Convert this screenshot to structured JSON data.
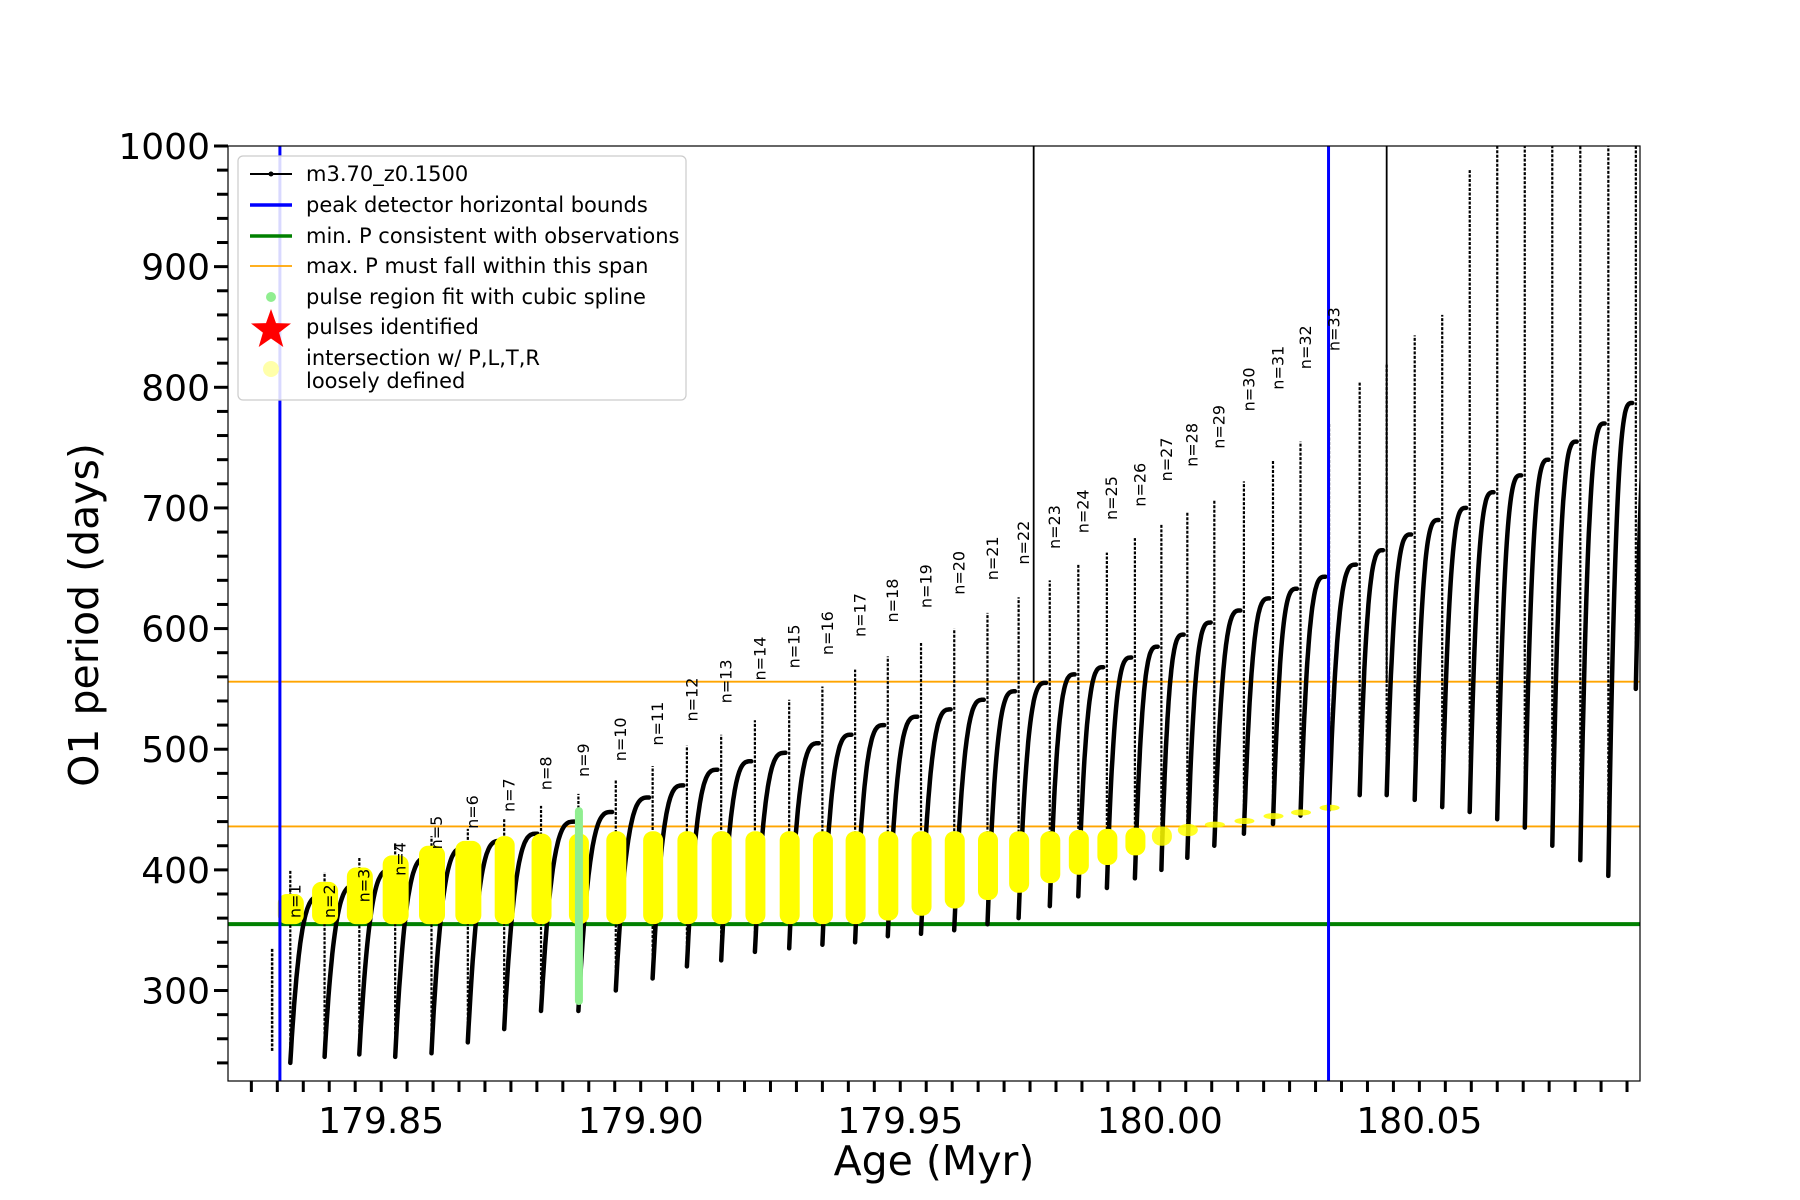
{
  "chart_data": {
    "type": "scatter",
    "xlabel": "Age (Myr)",
    "ylabel": "O1 period (days)",
    "xlim": [
      179.8205,
      180.0925
    ],
    "ylim": [
      225,
      1000
    ],
    "xticks": [
      179.85,
      179.9,
      179.95,
      180.0,
      180.05
    ],
    "xtick_labels": [
      "179.85",
      "179.90",
      "179.95",
      "180.00",
      "180.05"
    ],
    "yticks": [
      300,
      400,
      500,
      600,
      700,
      800,
      900,
      1000
    ],
    "ytick_labels": [
      "300",
      "400",
      "500",
      "600",
      "700",
      "800",
      "900",
      "1000"
    ],
    "grid": false,
    "legend_position": "top-left",
    "colors": {
      "model": "#000000",
      "bounds": "#0000ff",
      "min_p": "#008000",
      "max_p": "#ffa500",
      "spline": "#90ee90",
      "pulses": "#ff0000",
      "intersection": "#ffff00",
      "loose": "#ffffaa"
    },
    "legend": [
      {
        "label": "m3.70_z0.1500",
        "marker": "line-dot",
        "color": "#000000"
      },
      {
        "label": "peak detector horizontal bounds",
        "marker": "line",
        "color": "#0000ff"
      },
      {
        "label": "min. P consistent with observations",
        "marker": "line",
        "color": "#008000"
      },
      {
        "label": "max. P must fall within this span",
        "marker": "thin-line",
        "color": "#ffa500"
      },
      {
        "label": "pulse region fit with cubic spline",
        "marker": "dot",
        "color": "#90ee90"
      },
      {
        "label": "pulses identified",
        "marker": "star",
        "color": "#ff0000"
      },
      {
        "label": "intersection w/ P,L,T,R",
        "marker": "none",
        "color": "#ffff00"
      },
      {
        "label": "loosely defined",
        "marker": "circle",
        "color": "#ffffaa"
      }
    ],
    "vertical_bounds": [
      179.8305,
      180.0325
    ],
    "min_p": 355,
    "max_p_span": [
      436,
      556
    ],
    "extra_vlines": [
      179.9757,
      180.0437
    ],
    "pulses": [
      {
        "n": 1,
        "x": 179.8325,
        "peak": 378,
        "min": 240,
        "top": 400
      },
      {
        "n": 2,
        "x": 179.8391,
        "peak": 387,
        "min": 245,
        "top": 398
      },
      {
        "n": 3,
        "x": 179.8458,
        "peak": 400,
        "min": 247,
        "top": 411
      },
      {
        "n": 4,
        "x": 179.8527,
        "peak": 410,
        "min": 245,
        "top": 422
      },
      {
        "n": 5,
        "x": 179.8597,
        "peak": 418,
        "min": 248,
        "top": 428
      },
      {
        "n": 6,
        "x": 179.8667,
        "peak": 424,
        "min": 257,
        "top": 434
      },
      {
        "n": 7,
        "x": 179.8737,
        "peak": 430,
        "min": 268,
        "top": 442
      },
      {
        "n": 8,
        "x": 179.8808,
        "peak": 440,
        "min": 283,
        "top": 453
      },
      {
        "n": 9,
        "x": 179.888,
        "peak": 448,
        "min": 283,
        "top": 463
      },
      {
        "n": 10,
        "x": 179.8952,
        "peak": 460,
        "min": 300,
        "top": 475
      },
      {
        "n": 11,
        "x": 179.9023,
        "peak": 470,
        "min": 310,
        "top": 486
      },
      {
        "n": 12,
        "x": 179.9089,
        "peak": 483,
        "min": 320,
        "top": 503
      },
      {
        "n": 13,
        "x": 179.9155,
        "peak": 490,
        "min": 325,
        "top": 512
      },
      {
        "n": 14,
        "x": 179.922,
        "peak": 497,
        "min": 332,
        "top": 524
      },
      {
        "n": 15,
        "x": 179.9286,
        "peak": 505,
        "min": 335,
        "top": 541
      },
      {
        "n": 16,
        "x": 179.935,
        "peak": 512,
        "min": 338,
        "top": 552
      },
      {
        "n": 17,
        "x": 179.9413,
        "peak": 520,
        "min": 340,
        "top": 566
      },
      {
        "n": 18,
        "x": 179.9476,
        "peak": 527,
        "min": 345,
        "top": 577
      },
      {
        "n": 19,
        "x": 179.954,
        "peak": 533,
        "min": 347,
        "top": 588
      },
      {
        "n": 20,
        "x": 179.9604,
        "peak": 541,
        "min": 350,
        "top": 600
      },
      {
        "n": 21,
        "x": 179.9668,
        "peak": 548,
        "min": 355,
        "top": 613
      },
      {
        "n": 22,
        "x": 179.9728,
        "peak": 555,
        "min": 360,
        "top": 626
      },
      {
        "n": 23,
        "x": 179.9788,
        "peak": 562,
        "min": 370,
        "top": 640
      },
      {
        "n": 24,
        "x": 179.9843,
        "peak": 568,
        "min": 378,
        "top": 653
      },
      {
        "n": 25,
        "x": 179.9898,
        "peak": 576,
        "min": 385,
        "top": 663
      },
      {
        "n": 26,
        "x": 179.9952,
        "peak": 585,
        "min": 393,
        "top": 675
      },
      {
        "n": 27,
        "x": 180.0003,
        "peak": 595,
        "min": 400,
        "top": 687
      },
      {
        "n": 28,
        "x": 180.0053,
        "peak": 605,
        "min": 410,
        "top": 697
      },
      {
        "n": 29,
        "x": 180.0105,
        "peak": 615,
        "min": 420,
        "top": 706
      },
      {
        "n": 30,
        "x": 180.0162,
        "peak": 625,
        "min": 430,
        "top": 722
      },
      {
        "n": 31,
        "x": 180.0218,
        "peak": 633,
        "min": 438,
        "top": 740
      },
      {
        "n": 32,
        "x": 180.0271,
        "peak": 643,
        "min": 445,
        "top": 755
      },
      {
        "n": 33,
        "x": 180.0326,
        "peak": 653,
        "min": 450,
        "top": 770
      }
    ],
    "pulse_labels": [
      {
        "text": "n=1",
        "x": 179.8345,
        "y": 360
      },
      {
        "text": "n=2",
        "x": 179.8411,
        "y": 360
      },
      {
        "text": "n=3",
        "x": 179.8478,
        "y": 373
      },
      {
        "text": "n=4",
        "x": 179.8547,
        "y": 395
      },
      {
        "text": "n=5",
        "x": 179.8617,
        "y": 417
      },
      {
        "text": "n=6",
        "x": 179.8687,
        "y": 434
      },
      {
        "text": "n=7",
        "x": 179.8757,
        "y": 448
      },
      {
        "text": "n=8",
        "x": 179.8828,
        "y": 466
      },
      {
        "text": "n=9",
        "x": 179.89,
        "y": 477
      },
      {
        "text": "n=10",
        "x": 179.8972,
        "y": 490
      },
      {
        "text": "n=11",
        "x": 179.9043,
        "y": 503
      },
      {
        "text": "n=12",
        "x": 179.9109,
        "y": 523
      },
      {
        "text": "n=13",
        "x": 179.9175,
        "y": 538
      },
      {
        "text": "n=14",
        "x": 179.924,
        "y": 557
      },
      {
        "text": "n=15",
        "x": 179.9306,
        "y": 567
      },
      {
        "text": "n=16",
        "x": 179.937,
        "y": 578
      },
      {
        "text": "n=17",
        "x": 179.9433,
        "y": 593
      },
      {
        "text": "n=18",
        "x": 179.9496,
        "y": 605
      },
      {
        "text": "n=19",
        "x": 179.956,
        "y": 617
      },
      {
        "text": "n=20",
        "x": 179.9624,
        "y": 628
      },
      {
        "text": "n=21",
        "x": 179.9688,
        "y": 640
      },
      {
        "text": "n=22",
        "x": 179.9748,
        "y": 653
      },
      {
        "text": "n=23",
        "x": 179.9808,
        "y": 666
      },
      {
        "text": "n=24",
        "x": 179.9863,
        "y": 679
      },
      {
        "text": "n=25",
        "x": 179.9918,
        "y": 690
      },
      {
        "text": "n=26",
        "x": 179.9972,
        "y": 701
      },
      {
        "text": "n=27",
        "x": 180.0023,
        "y": 722
      },
      {
        "text": "n=28",
        "x": 180.0073,
        "y": 734
      },
      {
        "text": "n=29",
        "x": 180.0125,
        "y": 749
      },
      {
        "text": "n=30",
        "x": 180.0182,
        "y": 780
      },
      {
        "text": "n=31",
        "x": 180.0238,
        "y": 798
      },
      {
        "text": "n=32",
        "x": 180.0291,
        "y": 815
      },
      {
        "text": "n=33",
        "x": 180.0346,
        "y": 830
      }
    ],
    "late_pulses": [
      {
        "x": 180.0385,
        "peak": 665,
        "min": 462,
        "top": 805
      },
      {
        "x": 180.0437,
        "peak": 678,
        "min": 462,
        "top": 820
      },
      {
        "x": 180.0491,
        "peak": 690,
        "min": 458,
        "top": 843
      },
      {
        "x": 180.0544,
        "peak": 700,
        "min": 452,
        "top": 860
      },
      {
        "x": 180.0597,
        "peak": 713,
        "min": 448,
        "top": 980
      },
      {
        "x": 180.065,
        "peak": 727,
        "min": 442,
        "top": 1000
      },
      {
        "x": 180.0703,
        "peak": 740,
        "min": 435,
        "top": 1000
      },
      {
        "x": 180.0756,
        "peak": 755,
        "min": 420,
        "top": 1000
      },
      {
        "x": 180.081,
        "peak": 770,
        "min": 408,
        "top": 1000
      },
      {
        "x": 180.0864,
        "peak": 787,
        "min": 395,
        "top": 1000
      },
      {
        "x": 180.0917,
        "peak": 797,
        "min": 550,
        "top": 1000
      }
    ],
    "yellow_bands": [
      {
        "x": 179.8326,
        "lo": 355,
        "hi": 380
      },
      {
        "x": 179.8392,
        "lo": 355,
        "hi": 390
      },
      {
        "x": 179.8459,
        "lo": 355,
        "hi": 402
      },
      {
        "x": 179.8528,
        "lo": 355,
        "hi": 412
      },
      {
        "x": 179.8598,
        "lo": 355,
        "hi": 420
      },
      {
        "x": 179.8668,
        "lo": 355,
        "hi": 424
      },
      {
        "x": 179.8738,
        "lo": 355,
        "hi": 428
      },
      {
        "x": 179.8809,
        "lo": 355,
        "hi": 430
      },
      {
        "x": 179.8881,
        "lo": 355,
        "hi": 430
      },
      {
        "x": 179.8953,
        "lo": 355,
        "hi": 432
      },
      {
        "x": 179.9024,
        "lo": 355,
        "hi": 432
      },
      {
        "x": 179.909,
        "lo": 355,
        "hi": 432
      },
      {
        "x": 179.9156,
        "lo": 355,
        "hi": 432
      },
      {
        "x": 179.9221,
        "lo": 355,
        "hi": 432
      },
      {
        "x": 179.9287,
        "lo": 355,
        "hi": 432
      },
      {
        "x": 179.9351,
        "lo": 355,
        "hi": 432
      },
      {
        "x": 179.9414,
        "lo": 355,
        "hi": 432
      },
      {
        "x": 179.9477,
        "lo": 358,
        "hi": 432
      },
      {
        "x": 179.9541,
        "lo": 362,
        "hi": 432
      },
      {
        "x": 179.9605,
        "lo": 368,
        "hi": 432
      },
      {
        "x": 179.9669,
        "lo": 375,
        "hi": 432
      },
      {
        "x": 179.9729,
        "lo": 381,
        "hi": 432
      },
      {
        "x": 179.9789,
        "lo": 389,
        "hi": 432
      },
      {
        "x": 179.9844,
        "lo": 396,
        "hi": 433
      },
      {
        "x": 179.9899,
        "lo": 404,
        "hi": 434
      },
      {
        "x": 179.9953,
        "lo": 412,
        "hi": 435
      },
      {
        "x": 180.0004,
        "lo": 420,
        "hi": 436
      },
      {
        "x": 180.0054,
        "lo": 428,
        "hi": 438
      },
      {
        "x": 180.0106,
        "lo": 435,
        "hi": 440
      },
      {
        "x": 180.0163,
        "lo": 440,
        "hi": 443
      },
      {
        "x": 180.0219,
        "lo": 444,
        "hi": 447
      },
      {
        "x": 180.0272,
        "lo": 448,
        "hi": 450
      },
      {
        "x": 180.0327,
        "lo": 452,
        "hi": 454
      }
    ],
    "spline_region": {
      "x": 179.8881,
      "lo": 288,
      "hi": 452
    }
  }
}
